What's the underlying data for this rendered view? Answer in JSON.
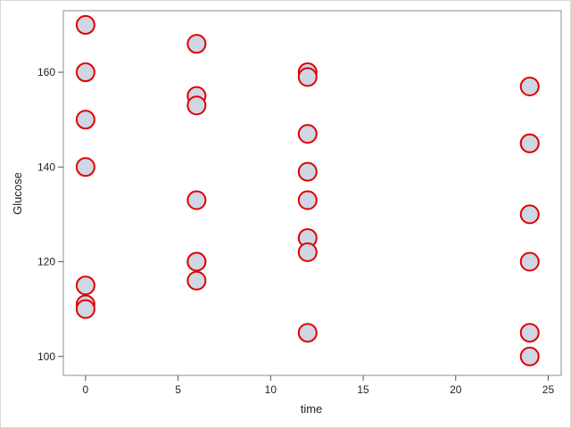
{
  "chart_data": {
    "type": "scatter",
    "xlabel": "time",
    "ylabel": "Glucose",
    "xlim": [
      -1.2,
      25.7
    ],
    "ylim": [
      96,
      173
    ],
    "xticks": [
      0,
      5,
      10,
      15,
      20,
      25
    ],
    "yticks": [
      100,
      120,
      140,
      160
    ],
    "grid": false,
    "legend": "none",
    "marker_fill": "#cfd6e4",
    "marker_stroke": "#e00000",
    "points": [
      {
        "x": 0,
        "y": 170
      },
      {
        "x": 0,
        "y": 160
      },
      {
        "x": 0,
        "y": 150
      },
      {
        "x": 0,
        "y": 140
      },
      {
        "x": 0,
        "y": 115
      },
      {
        "x": 0,
        "y": 111
      },
      {
        "x": 0,
        "y": 110
      },
      {
        "x": 6,
        "y": 166
      },
      {
        "x": 6,
        "y": 155
      },
      {
        "x": 6,
        "y": 153
      },
      {
        "x": 6,
        "y": 133
      },
      {
        "x": 6,
        "y": 120
      },
      {
        "x": 6,
        "y": 120
      },
      {
        "x": 6,
        "y": 116
      },
      {
        "x": 12,
        "y": 160
      },
      {
        "x": 12,
        "y": 159
      },
      {
        "x": 12,
        "y": 147
      },
      {
        "x": 12,
        "y": 139
      },
      {
        "x": 12,
        "y": 133
      },
      {
        "x": 12,
        "y": 125
      },
      {
        "x": 12,
        "y": 122
      },
      {
        "x": 12,
        "y": 105
      },
      {
        "x": 24,
        "y": 157
      },
      {
        "x": 24,
        "y": 145
      },
      {
        "x": 24,
        "y": 145
      },
      {
        "x": 24,
        "y": 130
      },
      {
        "x": 24,
        "y": 120
      },
      {
        "x": 24,
        "y": 105
      },
      {
        "x": 24,
        "y": 100
      }
    ]
  }
}
